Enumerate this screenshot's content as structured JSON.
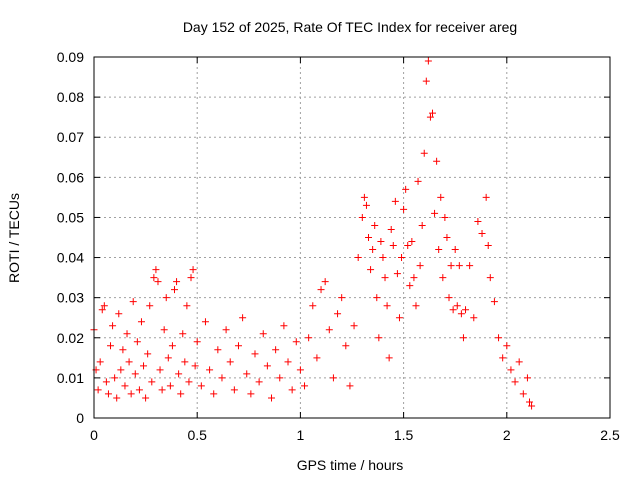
{
  "chart_data": {
    "type": "scatter",
    "title": "Day 152 of 2025, Rate Of TEC Index for receiver areg",
    "xlabel": "GPS time / hours",
    "ylabel": "ROTI / TECUs",
    "xlim": [
      0,
      2.5
    ],
    "ylim": [
      0,
      0.09
    ],
    "xticks": [
      0,
      0.5,
      1,
      1.5,
      2,
      2.5
    ],
    "xtick_labels": [
      "0",
      "0.5",
      "1",
      "1.5",
      "2",
      "2.5"
    ],
    "yticks": [
      0,
      0.01,
      0.02,
      0.03,
      0.04,
      0.05,
      0.06,
      0.07,
      0.08,
      0.09
    ],
    "ytick_labels": [
      "0",
      "0.01",
      "0.02",
      "0.03",
      "0.04",
      "0.05",
      "0.06",
      "0.07",
      "0.08",
      "0.09"
    ],
    "grid": true,
    "marker": "plus",
    "marker_color": "#ff0000",
    "series": [
      {
        "name": "",
        "points": [
          [
            0.0,
            0.022
          ],
          [
            0.01,
            0.012
          ],
          [
            0.02,
            0.007
          ],
          [
            0.03,
            0.014
          ],
          [
            0.04,
            0.027
          ],
          [
            0.05,
            0.028
          ],
          [
            0.06,
            0.009
          ],
          [
            0.07,
            0.006
          ],
          [
            0.08,
            0.018
          ],
          [
            0.09,
            0.023
          ],
          [
            0.1,
            0.01
          ],
          [
            0.11,
            0.005
          ],
          [
            0.12,
            0.026
          ],
          [
            0.13,
            0.012
          ],
          [
            0.14,
            0.017
          ],
          [
            0.15,
            0.008
          ],
          [
            0.16,
            0.021
          ],
          [
            0.17,
            0.014
          ],
          [
            0.18,
            0.006
          ],
          [
            0.19,
            0.029
          ],
          [
            0.2,
            0.011
          ],
          [
            0.21,
            0.019
          ],
          [
            0.22,
            0.007
          ],
          [
            0.23,
            0.024
          ],
          [
            0.24,
            0.013
          ],
          [
            0.25,
            0.005
          ],
          [
            0.26,
            0.016
          ],
          [
            0.27,
            0.028
          ],
          [
            0.28,
            0.009
          ],
          [
            0.29,
            0.035
          ],
          [
            0.3,
            0.037
          ],
          [
            0.31,
            0.034
          ],
          [
            0.32,
            0.012
          ],
          [
            0.33,
            0.007
          ],
          [
            0.34,
            0.022
          ],
          [
            0.35,
            0.03
          ],
          [
            0.36,
            0.015
          ],
          [
            0.37,
            0.008
          ],
          [
            0.38,
            0.018
          ],
          [
            0.39,
            0.032
          ],
          [
            0.4,
            0.034
          ],
          [
            0.41,
            0.011
          ],
          [
            0.42,
            0.006
          ],
          [
            0.43,
            0.021
          ],
          [
            0.44,
            0.014
          ],
          [
            0.45,
            0.028
          ],
          [
            0.46,
            0.009
          ],
          [
            0.47,
            0.035
          ],
          [
            0.48,
            0.037
          ],
          [
            0.49,
            0.013
          ],
          [
            0.5,
            0.019
          ],
          [
            0.52,
            0.008
          ],
          [
            0.54,
            0.024
          ],
          [
            0.56,
            0.012
          ],
          [
            0.58,
            0.006
          ],
          [
            0.6,
            0.017
          ],
          [
            0.62,
            0.01
          ],
          [
            0.64,
            0.022
          ],
          [
            0.66,
            0.014
          ],
          [
            0.68,
            0.007
          ],
          [
            0.7,
            0.018
          ],
          [
            0.72,
            0.025
          ],
          [
            0.74,
            0.011
          ],
          [
            0.76,
            0.006
          ],
          [
            0.78,
            0.016
          ],
          [
            0.8,
            0.009
          ],
          [
            0.82,
            0.021
          ],
          [
            0.84,
            0.013
          ],
          [
            0.86,
            0.005
          ],
          [
            0.88,
            0.017
          ],
          [
            0.9,
            0.01
          ],
          [
            0.92,
            0.023
          ],
          [
            0.94,
            0.014
          ],
          [
            0.96,
            0.007
          ],
          [
            0.98,
            0.019
          ],
          [
            1.0,
            0.012
          ],
          [
            1.02,
            0.008
          ],
          [
            1.04,
            0.02
          ],
          [
            1.06,
            0.028
          ],
          [
            1.08,
            0.015
          ],
          [
            1.1,
            0.032
          ],
          [
            1.12,
            0.034
          ],
          [
            1.14,
            0.022
          ],
          [
            1.16,
            0.01
          ],
          [
            1.18,
            0.026
          ],
          [
            1.2,
            0.03
          ],
          [
            1.22,
            0.018
          ],
          [
            1.24,
            0.008
          ],
          [
            1.26,
            0.023
          ],
          [
            1.28,
            0.04
          ],
          [
            1.3,
            0.05
          ],
          [
            1.31,
            0.055
          ],
          [
            1.32,
            0.053
          ],
          [
            1.33,
            0.045
          ],
          [
            1.34,
            0.037
          ],
          [
            1.35,
            0.042
          ],
          [
            1.36,
            0.048
          ],
          [
            1.37,
            0.03
          ],
          [
            1.38,
            0.02
          ],
          [
            1.39,
            0.044
          ],
          [
            1.4,
            0.04
          ],
          [
            1.41,
            0.035
          ],
          [
            1.42,
            0.028
          ],
          [
            1.43,
            0.015
          ],
          [
            1.44,
            0.047
          ],
          [
            1.45,
            0.043
          ],
          [
            1.46,
            0.054
          ],
          [
            1.47,
            0.036
          ],
          [
            1.48,
            0.025
          ],
          [
            1.49,
            0.04
          ],
          [
            1.5,
            0.052
          ],
          [
            1.51,
            0.057
          ],
          [
            1.52,
            0.043
          ],
          [
            1.53,
            0.033
          ],
          [
            1.54,
            0.044
          ],
          [
            1.55,
            0.035
          ],
          [
            1.56,
            0.028
          ],
          [
            1.57,
            0.059
          ],
          [
            1.58,
            0.038
          ],
          [
            1.59,
            0.048
          ],
          [
            1.6,
            0.066
          ],
          [
            1.61,
            0.084
          ],
          [
            1.62,
            0.089
          ],
          [
            1.63,
            0.075
          ],
          [
            1.64,
            0.076
          ],
          [
            1.65,
            0.051
          ],
          [
            1.66,
            0.064
          ],
          [
            1.67,
            0.042
          ],
          [
            1.68,
            0.055
          ],
          [
            1.69,
            0.035
          ],
          [
            1.7,
            0.05
          ],
          [
            1.71,
            0.045
          ],
          [
            1.72,
            0.03
          ],
          [
            1.73,
            0.038
          ],
          [
            1.74,
            0.027
          ],
          [
            1.75,
            0.042
          ],
          [
            1.76,
            0.028
          ],
          [
            1.77,
            0.038
          ],
          [
            1.78,
            0.026
          ],
          [
            1.79,
            0.02
          ],
          [
            1.8,
            0.027
          ],
          [
            1.82,
            0.038
          ],
          [
            1.84,
            0.025
          ],
          [
            1.86,
            0.049
          ],
          [
            1.88,
            0.046
          ],
          [
            1.9,
            0.055
          ],
          [
            1.91,
            0.043
          ],
          [
            1.92,
            0.035
          ],
          [
            1.94,
            0.029
          ],
          [
            1.96,
            0.02
          ],
          [
            1.98,
            0.015
          ],
          [
            2.0,
            0.018
          ],
          [
            2.02,
            0.012
          ],
          [
            2.04,
            0.009
          ],
          [
            2.06,
            0.014
          ],
          [
            2.08,
            0.006
          ],
          [
            2.1,
            0.01
          ],
          [
            2.11,
            0.004
          ],
          [
            2.12,
            0.003
          ]
        ]
      }
    ]
  }
}
